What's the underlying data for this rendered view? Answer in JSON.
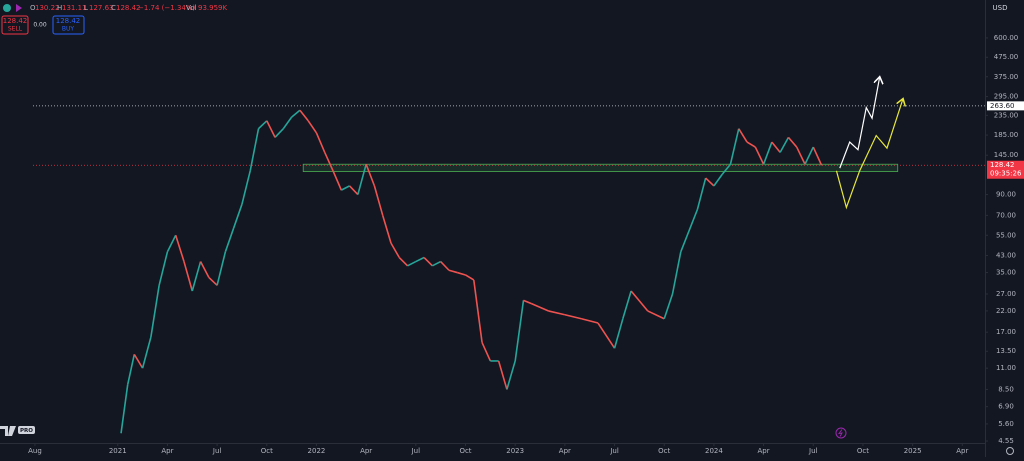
{
  "header": {
    "ohlc": [
      {
        "label": "O",
        "value": "130.22"
      },
      {
        "label": "H",
        "value": "131.11"
      },
      {
        "label": "L",
        "value": "127.63"
      },
      {
        "label": "C",
        "value": "128.42"
      }
    ],
    "change": "−1.74 (−1.34%)",
    "volume_label": "Vol",
    "volume": "93.959K",
    "sell_price": "128.42",
    "sell": "SELL",
    "spread": "0.00",
    "buy_price": "128.42",
    "buy": "BUY",
    "currency": "USD",
    "logo": "PRO"
  },
  "chart_data": {
    "type": "line",
    "log": true,
    "grid": false,
    "xlim": [
      -2.11,
      57.37
    ],
    "ylim": [
      3.75,
      950
    ],
    "xticks": [
      {
        "value": 0,
        "label": "Aug"
      },
      {
        "value": 5,
        "label": "2021"
      },
      {
        "value": 8,
        "label": "Apr"
      },
      {
        "value": 11,
        "label": "Jul"
      },
      {
        "value": 14,
        "label": "Oct"
      },
      {
        "value": 17,
        "label": "2022"
      },
      {
        "value": 20,
        "label": "Apr"
      },
      {
        "value": 23,
        "label": "Jul"
      },
      {
        "value": 26,
        "label": "Oct"
      },
      {
        "value": 29,
        "label": "2023"
      },
      {
        "value": 32,
        "label": "Apr"
      },
      {
        "value": 35,
        "label": "Jul"
      },
      {
        "value": 38,
        "label": "Oct"
      },
      {
        "value": 41,
        "label": "2024"
      },
      {
        "value": 44,
        "label": "Apr"
      },
      {
        "value": 47,
        "label": "Jul"
      },
      {
        "value": 50,
        "label": "Oct"
      },
      {
        "value": 53,
        "label": "2025"
      },
      {
        "value": 56,
        "label": "Apr"
      }
    ],
    "yticks": [
      {
        "value": 600,
        "label": "600.00"
      },
      {
        "value": 475,
        "label": "475.00"
      },
      {
        "value": 375,
        "label": "375.00"
      },
      {
        "value": 295,
        "label": "295.00"
      },
      {
        "value": 235,
        "label": "235.00"
      },
      {
        "value": 185,
        "label": "185.00"
      },
      {
        "value": 145,
        "label": "145.00"
      },
      {
        "value": 90,
        "label": "90.00"
      },
      {
        "value": 70,
        "label": "70.00"
      },
      {
        "value": 55,
        "label": "55.00"
      },
      {
        "value": 43,
        "label": "43.00"
      },
      {
        "value": 35,
        "label": "35.00"
      },
      {
        "value": 27,
        "label": "27.00"
      },
      {
        "value": 22,
        "label": "22.00"
      },
      {
        "value": 17,
        "label": "17.00"
      },
      {
        "value": 13.5,
        "label": "13.50"
      },
      {
        "value": 11,
        "label": "11.00"
      },
      {
        "value": 8.5,
        "label": "8.50"
      },
      {
        "value": 6.9,
        "label": "6.90"
      },
      {
        "value": 5.6,
        "label": "5.60"
      },
      {
        "value": 4.55,
        "label": "4.55"
      }
    ],
    "series": [
      {
        "role": "price",
        "up_color": "#26a69a",
        "down_color": "#ef5350",
        "x": [
          5.2,
          5.6,
          6,
          6.5,
          7,
          7.5,
          8,
          8.5,
          9,
          9.5,
          10,
          10.5,
          11,
          11.5,
          12,
          12.5,
          13,
          13.5,
          14,
          14.5,
          15,
          15.5,
          16,
          16.5,
          17,
          17.5,
          18,
          18.5,
          19,
          19.5,
          20,
          20.5,
          21,
          21.5,
          22,
          22.5,
          23,
          23.5,
          24,
          24.5,
          25,
          25.5,
          26,
          26.5,
          27,
          27.5,
          28,
          28.5,
          29,
          29.5,
          30,
          31,
          32,
          33,
          34,
          35,
          35.5,
          36,
          37,
          38,
          38.5,
          39,
          40,
          40.5,
          41,
          41.5,
          42,
          42.5,
          43,
          43.5,
          44,
          44.5,
          45,
          45.5,
          46,
          46.5,
          47,
          47.5
        ],
        "values": [
          5,
          9,
          13,
          11,
          16,
          30,
          45,
          55,
          40,
          28,
          40,
          33,
          30,
          45,
          60,
          80,
          120,
          200,
          220,
          180,
          200,
          230,
          250,
          220,
          190,
          150,
          120,
          95,
          100,
          90,
          130,
          100,
          70,
          50,
          42,
          38,
          40,
          42,
          38,
          40,
          36,
          35,
          34,
          32,
          15,
          12,
          12,
          8.5,
          12,
          25,
          24,
          22,
          21,
          20,
          19,
          14,
          20,
          28,
          22,
          20,
          27,
          45,
          75,
          110,
          100,
          115,
          130,
          200,
          170,
          160,
          130,
          170,
          150,
          180,
          160,
          130,
          160,
          128.42
        ]
      },
      {
        "role": "projection",
        "color": "#ffffff",
        "x": [
          48.6,
          49.2,
          49.7,
          50.2,
          50.55,
          51
        ],
        "values": [
          124,
          170,
          155,
          258,
          227,
          370
        ]
      },
      {
        "role": "projection",
        "color": "#e8e83a",
        "x": [
          48.4,
          49,
          49.8,
          50.8,
          51.45,
          52.4
        ],
        "values": [
          120,
          77,
          120,
          184,
          158,
          284
        ]
      }
    ],
    "zone": {
      "x": [
        16.2,
        52.1
      ],
      "y": [
        119,
        130
      ],
      "color": "#4caf50"
    },
    "price_lines": [
      {
        "value": 263.6,
        "label": "263.60",
        "color": "#d1d4dc",
        "tag_color": "#ffffff",
        "text_color": "#131722"
      },
      {
        "value": 128.42,
        "label": "128.42",
        "color": "#f23645",
        "tag_color": "#f23645",
        "text_color": "#ffffff",
        "countdown": "09:35:26"
      }
    ]
  }
}
